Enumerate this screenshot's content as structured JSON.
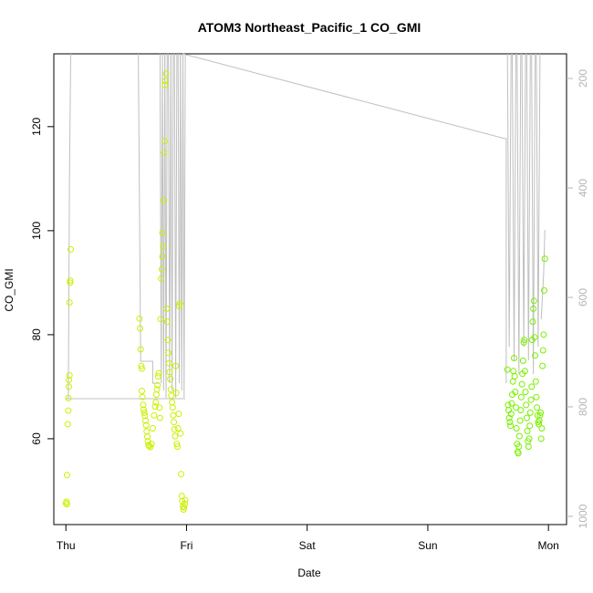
{
  "chart_data": {
    "type": "scatter",
    "title": "ATOM3 Northeast_Pacific_1 CO_GMI",
    "xlabel": "Date",
    "ylabel": "CO_GMI",
    "x_tick_labels": [
      "Thu",
      "Fri",
      "Sat",
      "Sun",
      "Mon"
    ],
    "x_tick_values": [
      0,
      1,
      2,
      3,
      4
    ],
    "xlim": [
      -0.1,
      4.15
    ],
    "ylim": [
      43.5,
      134
    ],
    "y_ticks": [
      60,
      80,
      100,
      120
    ],
    "y2_label": "",
    "y2_ticks": [
      200,
      400,
      600,
      800,
      1000
    ],
    "y2lim_inverted": [
      1015,
      155
    ],
    "grid": false,
    "point_marker": "open-circle",
    "colors": {
      "points_early": "#ccf000",
      "points_late": "#7af000",
      "trace_line": "#bfbfbf",
      "axis": "#000000",
      "right_axis": "#b5b5b5"
    },
    "series": [
      {
        "day_offset_group": "Thu",
        "points": [
          {
            "x": 0.0,
            "y": 47.6
          },
          {
            "x": 0.005,
            "y": 47.9
          },
          {
            "x": 0.01,
            "y": 47.4
          },
          {
            "x": 0.01,
            "y": 53.0
          },
          {
            "x": 0.015,
            "y": 62.8
          },
          {
            "x": 0.02,
            "y": 65.4
          },
          {
            "x": 0.02,
            "y": 67.8
          },
          {
            "x": 0.025,
            "y": 70.0
          },
          {
            "x": 0.025,
            "y": 71.3
          },
          {
            "x": 0.03,
            "y": 72.2
          },
          {
            "x": 0.03,
            "y": 86.2
          },
          {
            "x": 0.035,
            "y": 90.0
          },
          {
            "x": 0.035,
            "y": 90.4
          },
          {
            "x": 0.04,
            "y": 96.4
          }
        ]
      },
      {
        "day_offset_group": "Thu-evening",
        "points": [
          {
            "x": 0.61,
            "y": 83.1
          },
          {
            "x": 0.615,
            "y": 81.2
          },
          {
            "x": 0.62,
            "y": 77.2
          },
          {
            "x": 0.625,
            "y": 74.0
          },
          {
            "x": 0.63,
            "y": 73.5
          },
          {
            "x": 0.63,
            "y": 69.2
          },
          {
            "x": 0.635,
            "y": 68.0
          },
          {
            "x": 0.64,
            "y": 66.5
          },
          {
            "x": 0.645,
            "y": 65.6
          },
          {
            "x": 0.65,
            "y": 65.0
          },
          {
            "x": 0.655,
            "y": 64.4
          },
          {
            "x": 0.66,
            "y": 63.5
          },
          {
            "x": 0.665,
            "y": 62.6
          },
          {
            "x": 0.67,
            "y": 61.4
          },
          {
            "x": 0.675,
            "y": 60.4
          },
          {
            "x": 0.68,
            "y": 59.5
          },
          {
            "x": 0.685,
            "y": 58.8
          },
          {
            "x": 0.69,
            "y": 58.6
          },
          {
            "x": 0.7,
            "y": 58.4
          },
          {
            "x": 0.71,
            "y": 59.0
          },
          {
            "x": 0.72,
            "y": 62.0
          },
          {
            "x": 0.73,
            "y": 64.5
          },
          {
            "x": 0.74,
            "y": 66.2
          },
          {
            "x": 0.745,
            "y": 67.0
          },
          {
            "x": 0.75,
            "y": 68.5
          },
          {
            "x": 0.755,
            "y": 69.5
          },
          {
            "x": 0.76,
            "y": 70.3
          },
          {
            "x": 0.765,
            "y": 72.0
          },
          {
            "x": 0.77,
            "y": 72.6
          },
          {
            "x": 0.775,
            "y": 66.0
          },
          {
            "x": 0.78,
            "y": 64.0
          },
          {
            "x": 0.785,
            "y": 83.0
          },
          {
            "x": 0.79,
            "y": 90.8
          },
          {
            "x": 0.795,
            "y": 92.6
          },
          {
            "x": 0.8,
            "y": 95.0
          },
          {
            "x": 0.8,
            "y": 99.6
          },
          {
            "x": 0.805,
            "y": 97.0
          },
          {
            "x": 0.81,
            "y": 105.8
          },
          {
            "x": 0.815,
            "y": 115.0
          },
          {
            "x": 0.82,
            "y": 117.2
          },
          {
            "x": 0.82,
            "y": 128.0
          },
          {
            "x": 0.825,
            "y": 128.8
          },
          {
            "x": 0.83,
            "y": 130.2
          },
          {
            "x": 0.835,
            "y": 85.0
          },
          {
            "x": 0.84,
            "y": 82.5
          },
          {
            "x": 0.845,
            "y": 79.0
          },
          {
            "x": 0.85,
            "y": 76.5
          },
          {
            "x": 0.855,
            "y": 74.5
          },
          {
            "x": 0.86,
            "y": 72.8
          },
          {
            "x": 0.865,
            "y": 71.5
          },
          {
            "x": 0.87,
            "y": 69.5
          },
          {
            "x": 0.875,
            "y": 68.3
          },
          {
            "x": 0.88,
            "y": 67.0
          },
          {
            "x": 0.885,
            "y": 66.0
          },
          {
            "x": 0.89,
            "y": 64.5
          },
          {
            "x": 0.895,
            "y": 63.2
          },
          {
            "x": 0.9,
            "y": 61.8
          },
          {
            "x": 0.905,
            "y": 60.5
          },
          {
            "x": 0.91,
            "y": 74.0
          },
          {
            "x": 0.915,
            "y": 68.8
          },
          {
            "x": 0.92,
            "y": 59.0
          },
          {
            "x": 0.925,
            "y": 58.5
          },
          {
            "x": 0.93,
            "y": 62.0
          },
          {
            "x": 0.935,
            "y": 64.8
          },
          {
            "x": 0.94,
            "y": 85.5
          },
          {
            "x": 0.945,
            "y": 86.0
          },
          {
            "x": 0.95,
            "y": 61.0
          },
          {
            "x": 0.955,
            "y": 53.2
          },
          {
            "x": 0.96,
            "y": 49.0
          },
          {
            "x": 0.965,
            "y": 48.0
          },
          {
            "x": 0.97,
            "y": 47.0
          },
          {
            "x": 0.975,
            "y": 46.4
          },
          {
            "x": 0.98,
            "y": 46.8
          },
          {
            "x": 0.985,
            "y": 47.5
          },
          {
            "x": 0.99,
            "y": 48.2
          }
        ]
      },
      {
        "day_offset_group": "Sun-evening/Mon",
        "points": [
          {
            "x": 3.66,
            "y": 73.3
          },
          {
            "x": 3.665,
            "y": 66.5
          },
          {
            "x": 3.67,
            "y": 65.5
          },
          {
            "x": 3.675,
            "y": 64.0
          },
          {
            "x": 3.68,
            "y": 63.2
          },
          {
            "x": 3.685,
            "y": 62.5
          },
          {
            "x": 3.69,
            "y": 64.8
          },
          {
            "x": 3.695,
            "y": 66.8
          },
          {
            "x": 3.7,
            "y": 68.5
          },
          {
            "x": 3.705,
            "y": 71.0
          },
          {
            "x": 3.71,
            "y": 73.0
          },
          {
            "x": 3.715,
            "y": 75.5
          },
          {
            "x": 3.72,
            "y": 72.0
          },
          {
            "x": 3.725,
            "y": 69.0
          },
          {
            "x": 3.73,
            "y": 66.0
          },
          {
            "x": 3.735,
            "y": 62.0
          },
          {
            "x": 3.74,
            "y": 59.0
          },
          {
            "x": 3.745,
            "y": 57.5
          },
          {
            "x": 3.75,
            "y": 57.2
          },
          {
            "x": 3.755,
            "y": 58.5
          },
          {
            "x": 3.76,
            "y": 60.5
          },
          {
            "x": 3.765,
            "y": 63.5
          },
          {
            "x": 3.77,
            "y": 65.5
          },
          {
            "x": 3.775,
            "y": 68.0
          },
          {
            "x": 3.78,
            "y": 70.5
          },
          {
            "x": 3.785,
            "y": 72.5
          },
          {
            "x": 3.79,
            "y": 75.0
          },
          {
            "x": 3.795,
            "y": 78.5
          },
          {
            "x": 3.8,
            "y": 79.0
          },
          {
            "x": 3.805,
            "y": 73.0
          },
          {
            "x": 3.81,
            "y": 69.0
          },
          {
            "x": 3.815,
            "y": 66.5
          },
          {
            "x": 3.82,
            "y": 64.0
          },
          {
            "x": 3.825,
            "y": 61.5
          },
          {
            "x": 3.83,
            "y": 59.5
          },
          {
            "x": 3.835,
            "y": 58.5
          },
          {
            "x": 3.84,
            "y": 60.0
          },
          {
            "x": 3.845,
            "y": 62.5
          },
          {
            "x": 3.85,
            "y": 65.0
          },
          {
            "x": 3.855,
            "y": 67.5
          },
          {
            "x": 3.86,
            "y": 70.0
          },
          {
            "x": 3.865,
            "y": 79.0
          },
          {
            "x": 3.87,
            "y": 82.5
          },
          {
            "x": 3.875,
            "y": 85.0
          },
          {
            "x": 3.88,
            "y": 86.5
          },
          {
            "x": 3.885,
            "y": 79.5
          },
          {
            "x": 3.89,
            "y": 76.0
          },
          {
            "x": 3.895,
            "y": 71.0
          },
          {
            "x": 3.9,
            "y": 68.0
          },
          {
            "x": 3.905,
            "y": 66.0
          },
          {
            "x": 3.91,
            "y": 64.5
          },
          {
            "x": 3.915,
            "y": 63.2
          },
          {
            "x": 3.92,
            "y": 62.8
          },
          {
            "x": 3.925,
            "y": 63.5
          },
          {
            "x": 3.93,
            "y": 64.5
          },
          {
            "x": 3.935,
            "y": 65.0
          },
          {
            "x": 3.94,
            "y": 60.0
          },
          {
            "x": 3.945,
            "y": 62.0
          },
          {
            "x": 3.95,
            "y": 74.0
          },
          {
            "x": 3.955,
            "y": 77.0
          },
          {
            "x": 3.96,
            "y": 80.0
          },
          {
            "x": 3.965,
            "y": 88.5
          },
          {
            "x": 3.97,
            "y": 94.6
          }
        ]
      }
    ]
  }
}
